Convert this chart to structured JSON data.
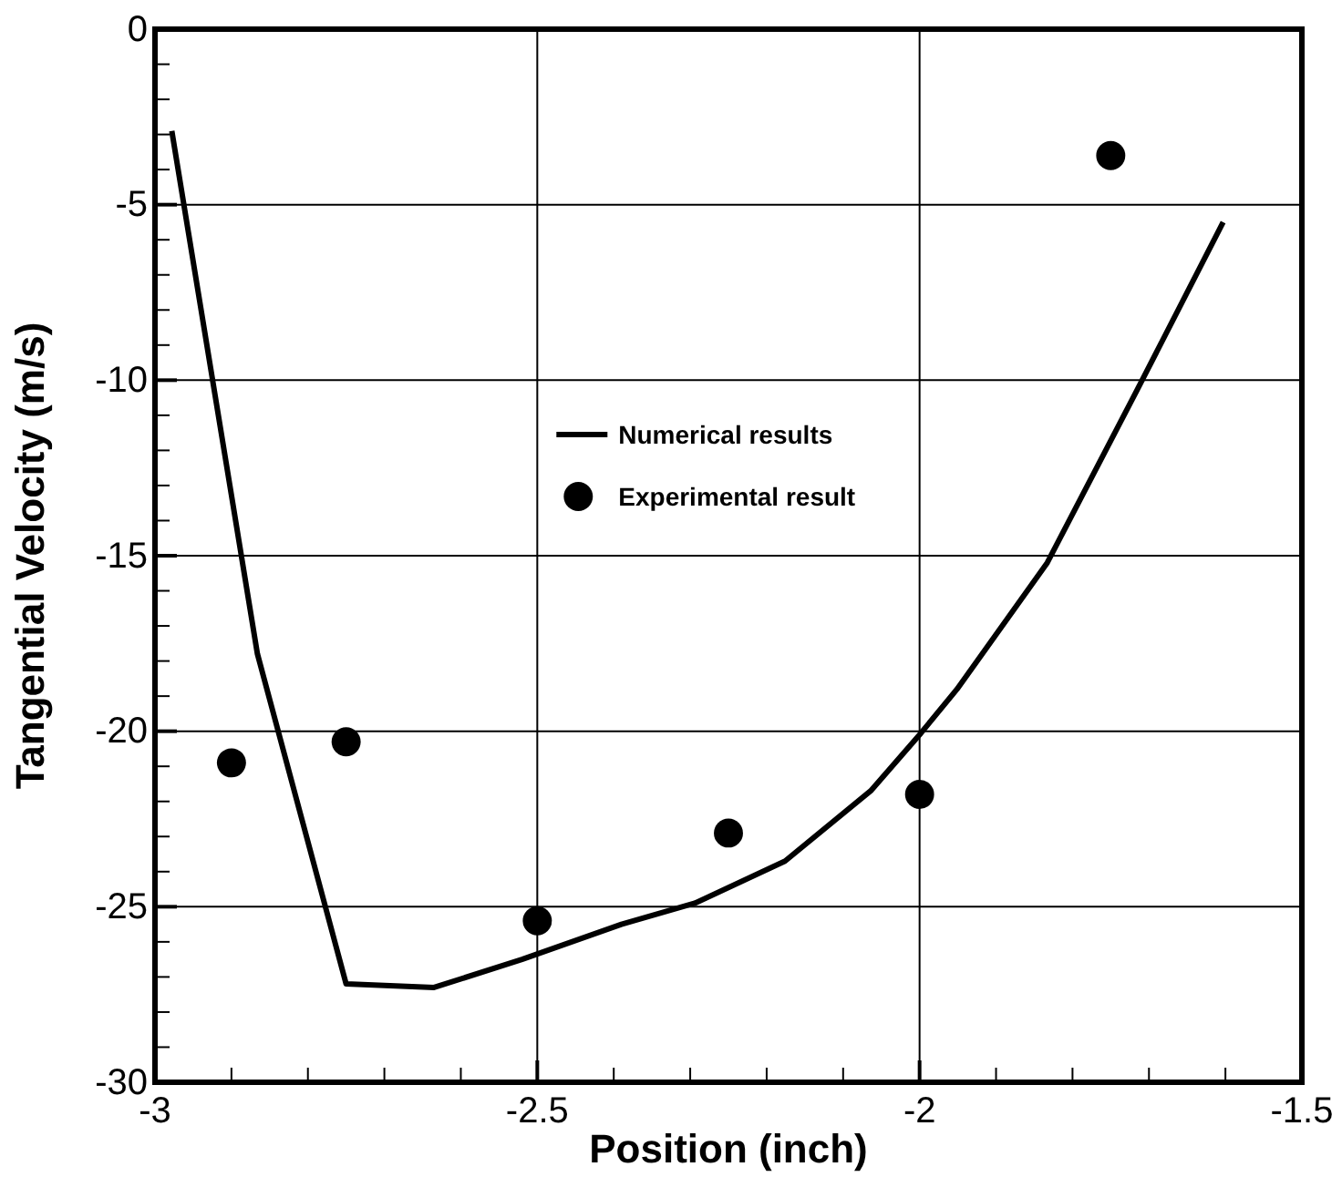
{
  "chart_data": {
    "type": "line",
    "xlabel": "Position (inch)",
    "ylabel": "Tangential Velocity (m/s)",
    "xlim": [
      -3,
      -1.5
    ],
    "ylim": [
      -30,
      0
    ],
    "xticks": [
      -3,
      {
        "value": -2.9,
        "label": null
      },
      {
        "value": -2.8,
        "label": null
      },
      {
        "value": -2.7,
        "label": null
      },
      {
        "value": -2.6,
        "label": null
      },
      -2.5,
      {
        "value": -2.4,
        "label": null
      },
      {
        "value": -2.3,
        "label": null
      },
      {
        "value": -2.2,
        "label": null
      },
      {
        "value": -2.1,
        "label": null
      },
      -2,
      {
        "value": -1.9,
        "label": null
      },
      {
        "value": -1.8,
        "label": null
      },
      {
        "value": -1.7,
        "label": null
      },
      {
        "value": -1.6,
        "label": null
      },
      -1.5
    ],
    "yticks": [
      -30,
      {
        "value": -29,
        "label": null
      },
      {
        "value": -28,
        "label": null
      },
      {
        "value": -27,
        "label": null
      },
      {
        "value": -26,
        "label": null
      },
      -25,
      {
        "value": -24,
        "label": null
      },
      {
        "value": -23,
        "label": null
      },
      {
        "value": -22,
        "label": null
      },
      {
        "value": -21,
        "label": null
      },
      -20,
      {
        "value": -19,
        "label": null
      },
      {
        "value": -18,
        "label": null
      },
      {
        "value": -17,
        "label": null
      },
      {
        "value": -16,
        "label": null
      },
      -15,
      {
        "value": -14,
        "label": null
      },
      {
        "value": -13,
        "label": null
      },
      {
        "value": -12,
        "label": null
      },
      {
        "value": -11,
        "label": null
      },
      -10,
      {
        "value": -9,
        "label": null
      },
      {
        "value": -8,
        "label": null
      },
      {
        "value": -7,
        "label": null
      },
      {
        "value": -6,
        "label": null
      },
      -5,
      {
        "value": -4,
        "label": null
      },
      {
        "value": -3,
        "label": null
      },
      {
        "value": -2,
        "label": null
      },
      {
        "value": -1,
        "label": null
      },
      0
    ],
    "grid": true,
    "legend": "center",
    "series": [
      {
        "name": "Numerical results",
        "color": "#000000",
        "line_style": "solid",
        "marker": "none",
        "x": [
          -2.978,
          -2.866,
          -2.75,
          -2.635,
          -2.52,
          -2.39,
          -2.294,
          -2.176,
          -2.064,
          -2.0,
          -1.951,
          -1.833,
          -1.716,
          -1.603
        ],
        "values": [
          -2.9,
          -17.8,
          -27.2,
          -27.3,
          -26.5,
          -25.5,
          -24.9,
          -23.7,
          -21.7,
          -20.1,
          -18.8,
          -15.2,
          -10.3,
          -5.5
        ]
      },
      {
        "name": "Experimental result",
        "type": "scatter",
        "color": "#000000",
        "marker": "circle",
        "x": [
          -2.9,
          -2.75,
          -2.5,
          -2.25,
          -2.0,
          -1.75
        ],
        "values": [
          -20.9,
          -20.3,
          -25.4,
          -22.9,
          -21.8,
          -3.6
        ]
      }
    ]
  }
}
